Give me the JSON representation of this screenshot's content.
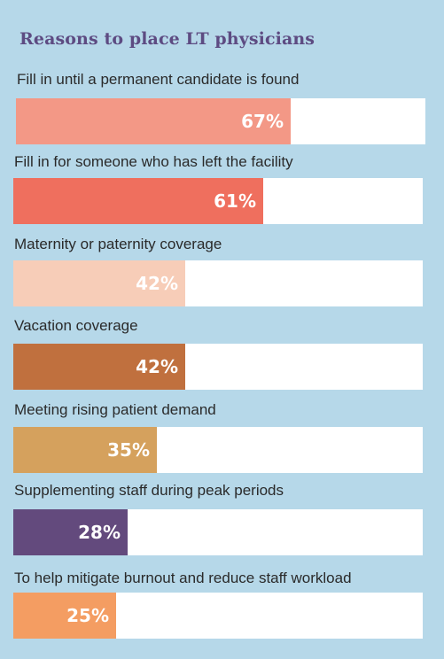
{
  "chart_data": {
    "type": "bar",
    "orientation": "horizontal",
    "title": "Reasons to place LT physicians",
    "categories": [
      "Fill in until a permanent candidate is found",
      "Fill in for someone who has left the facility",
      "Maternity or paternity coverage",
      "Vacation coverage",
      "Meeting rising patient demand",
      "Supplementing staff during peak periods",
      "To help mitigate burnout and reduce staff workload"
    ],
    "values": [
      67,
      61,
      42,
      42,
      35,
      28,
      25
    ],
    "value_labels": [
      "67%",
      "61%",
      "42%",
      "42%",
      "35%",
      "28%",
      "25%"
    ],
    "colors": [
      "#f39886",
      "#ef6f5e",
      "#f7cdb8",
      "#c0703e",
      "#d5a15d",
      "#634a7d",
      "#f49d62"
    ],
    "xlim": [
      0,
      100
    ],
    "grid": false,
    "legend": "none"
  }
}
